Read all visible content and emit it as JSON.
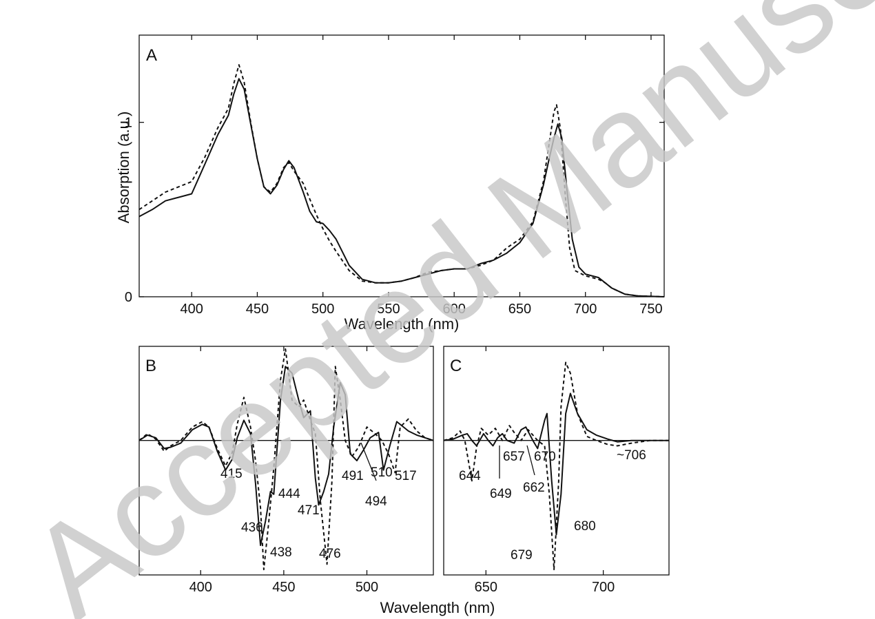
{
  "watermark": "Accepted Manuscript",
  "chart_data": [
    {
      "panel": "A",
      "type": "line",
      "xlabel": "Wavelength (nm)",
      "ylabel": "Absorption (a.u.)",
      "xlim": [
        360,
        760
      ],
      "ylim": [
        0,
        1.5
      ],
      "x_ticks": [
        "400",
        "450",
        "500",
        "550",
        "600",
        "650",
        "700",
        "750"
      ],
      "y_ticks": [
        "0",
        "1"
      ],
      "series": [
        {
          "style": "solid",
          "points": [
            [
              360,
              0.46
            ],
            [
              370,
              0.5
            ],
            [
              380,
              0.55
            ],
            [
              390,
              0.57
            ],
            [
              400,
              0.59
            ],
            [
              410,
              0.76
            ],
            [
              420,
              0.93
            ],
            [
              428,
              1.04
            ],
            [
              432,
              1.16
            ],
            [
              436,
              1.25
            ],
            [
              440,
              1.19
            ],
            [
              445,
              0.99
            ],
            [
              450,
              0.79
            ],
            [
              455,
              0.63
            ],
            [
              460,
              0.59
            ],
            [
              465,
              0.64
            ],
            [
              470,
              0.73
            ],
            [
              474,
              0.78
            ],
            [
              478,
              0.74
            ],
            [
              485,
              0.6
            ],
            [
              490,
              0.49
            ],
            [
              495,
              0.43
            ],
            [
              500,
              0.42
            ],
            [
              505,
              0.38
            ],
            [
              510,
              0.33
            ],
            [
              520,
              0.18
            ],
            [
              530,
              0.1
            ],
            [
              540,
              0.08
            ],
            [
              550,
              0.08
            ],
            [
              560,
              0.09
            ],
            [
              570,
              0.11
            ],
            [
              580,
              0.13
            ],
            [
              590,
              0.15
            ],
            [
              600,
              0.16
            ],
            [
              610,
              0.16
            ],
            [
              620,
              0.19
            ],
            [
              630,
              0.21
            ],
            [
              640,
              0.25
            ],
            [
              650,
              0.31
            ],
            [
              660,
              0.42
            ],
            [
              668,
              0.64
            ],
            [
              672,
              0.78
            ],
            [
              676,
              0.91
            ],
            [
              679,
              0.99
            ],
            [
              682,
              0.91
            ],
            [
              686,
              0.61
            ],
            [
              690,
              0.33
            ],
            [
              695,
              0.17
            ],
            [
              700,
              0.13
            ],
            [
              705,
              0.12
            ],
            [
              710,
              0.11
            ],
            [
              715,
              0.08
            ],
            [
              720,
              0.05
            ],
            [
              730,
              0.015
            ],
            [
              740,
              0.005
            ],
            [
              760,
              0.0
            ]
          ]
        },
        {
          "style": "dashed",
          "points": [
            [
              360,
              0.5
            ],
            [
              370,
              0.55
            ],
            [
              380,
              0.6
            ],
            [
              390,
              0.63
            ],
            [
              400,
              0.66
            ],
            [
              410,
              0.8
            ],
            [
              420,
              0.97
            ],
            [
              428,
              1.08
            ],
            [
              432,
              1.22
            ],
            [
              436,
              1.33
            ],
            [
              440,
              1.23
            ],
            [
              445,
              1.0
            ],
            [
              450,
              0.79
            ],
            [
              455,
              0.63
            ],
            [
              460,
              0.6
            ],
            [
              465,
              0.65
            ],
            [
              470,
              0.74
            ],
            [
              474,
              0.77
            ],
            [
              478,
              0.72
            ],
            [
              485,
              0.65
            ],
            [
              490,
              0.56
            ],
            [
              495,
              0.47
            ],
            [
              500,
              0.39
            ],
            [
              505,
              0.32
            ],
            [
              510,
              0.26
            ],
            [
              520,
              0.15
            ],
            [
              530,
              0.09
            ],
            [
              540,
              0.08
            ],
            [
              550,
              0.08
            ],
            [
              560,
              0.09
            ],
            [
              570,
              0.11
            ],
            [
              580,
              0.14
            ],
            [
              590,
              0.15
            ],
            [
              600,
              0.16
            ],
            [
              610,
              0.16
            ],
            [
              620,
              0.18
            ],
            [
              630,
              0.21
            ],
            [
              640,
              0.28
            ],
            [
              650,
              0.33
            ],
            [
              660,
              0.43
            ],
            [
              668,
              0.66
            ],
            [
              672,
              0.86
            ],
            [
              676,
              1.06
            ],
            [
              678,
              1.1
            ],
            [
              681,
              0.96
            ],
            [
              685,
              0.55
            ],
            [
              688,
              0.28
            ],
            [
              692,
              0.15
            ],
            [
              700,
              0.12
            ],
            [
              705,
              0.11
            ],
            [
              710,
              0.1
            ],
            [
              715,
              0.08
            ],
            [
              720,
              0.05
            ],
            [
              730,
              0.015
            ],
            [
              740,
              0.005
            ],
            [
              760,
              0.0
            ]
          ]
        }
      ]
    },
    {
      "panel": "B",
      "type": "line",
      "xlabel": "Wavelength (nm)",
      "xlim": [
        363,
        540
      ],
      "ylim": [
        -1.0,
        0.7
      ],
      "x_ticks": [
        "400",
        "450",
        "500"
      ],
      "zero_line": true,
      "annotations": [
        "415",
        "436",
        "438",
        "444",
        "471",
        "476",
        "491",
        "494",
        "510",
        "517"
      ],
      "series": [
        {
          "style": "solid",
          "points": [
            [
              363,
              0.0
            ],
            [
              368,
              0.04
            ],
            [
              373,
              0.02
            ],
            [
              378,
              -0.06
            ],
            [
              382,
              -0.05
            ],
            [
              388,
              -0.02
            ],
            [
              395,
              0.08
            ],
            [
              401,
              0.12
            ],
            [
              405,
              0.1
            ],
            [
              410,
              -0.08
            ],
            [
              415,
              -0.22
            ],
            [
              419,
              -0.14
            ],
            [
              422,
              0.02
            ],
            [
              426,
              0.15
            ],
            [
              430,
              0.05
            ],
            [
              433,
              -0.32
            ],
            [
              436,
              -0.78
            ],
            [
              439,
              -0.6
            ],
            [
              442,
              -0.38
            ],
            [
              444,
              -0.4
            ],
            [
              448,
              0.3
            ],
            [
              451,
              0.55
            ],
            [
              455,
              0.5
            ],
            [
              459,
              0.3
            ],
            [
              462,
              0.17
            ],
            [
              466,
              0.22
            ],
            [
              469,
              -0.28
            ],
            [
              471,
              -0.48
            ],
            [
              474,
              -0.38
            ],
            [
              477,
              -0.25
            ],
            [
              480,
              0.1
            ],
            [
              484,
              0.43
            ],
            [
              487,
              0.34
            ],
            [
              490,
              -0.1
            ],
            [
              494,
              -0.15
            ],
            [
              498,
              -0.07
            ],
            [
              502,
              0.02
            ],
            [
              507,
              0.06
            ],
            [
              510,
              -0.22
            ],
            [
              514,
              -0.03
            ],
            [
              518,
              0.14
            ],
            [
              525,
              0.07
            ],
            [
              530,
              0.04
            ],
            [
              535,
              0.02
            ],
            [
              540,
              0.0
            ]
          ]
        },
        {
          "style": "dashed",
          "points": [
            [
              363,
              0.0
            ],
            [
              368,
              0.05
            ],
            [
              373,
              0.01
            ],
            [
              378,
              -0.08
            ],
            [
              382,
              -0.04
            ],
            [
              388,
              0.0
            ],
            [
              395,
              0.1
            ],
            [
              401,
              0.14
            ],
            [
              405,
              0.1
            ],
            [
              410,
              -0.06
            ],
            [
              415,
              -0.19
            ],
            [
              419,
              -0.09
            ],
            [
              422,
              0.12
            ],
            [
              426,
              0.32
            ],
            [
              430,
              0.1
            ],
            [
              433,
              -0.15
            ],
            [
              436,
              -0.5
            ],
            [
              438,
              -0.96
            ],
            [
              441,
              -0.6
            ],
            [
              444,
              -0.2
            ],
            [
              448,
              0.45
            ],
            [
              451,
              0.68
            ],
            [
              455,
              0.3
            ],
            [
              459,
              0.25
            ],
            [
              462,
              0.3
            ],
            [
              466,
              0.15
            ],
            [
              469,
              0.05
            ],
            [
              472,
              -0.45
            ],
            [
              476,
              -0.92
            ],
            [
              479,
              -0.3
            ],
            [
              481,
              0.55
            ],
            [
              484,
              0.3
            ],
            [
              487,
              0.0
            ],
            [
              491,
              -0.12
            ],
            [
              495,
              -0.05
            ],
            [
              500,
              0.1
            ],
            [
              505,
              0.05
            ],
            [
              509,
              0.0
            ],
            [
              513,
              -0.1
            ],
            [
              517,
              -0.24
            ],
            [
              520,
              0.1
            ],
            [
              525,
              0.16
            ],
            [
              530,
              0.07
            ],
            [
              535,
              0.02
            ],
            [
              540,
              0.0
            ]
          ]
        }
      ]
    },
    {
      "panel": "C",
      "type": "line",
      "xlim": [
        632,
        728
      ],
      "ylim": [
        -1.0,
        0.7
      ],
      "x_ticks": [
        "650",
        "700"
      ],
      "zero_line": true,
      "annotations": [
        "644",
        "649",
        "657",
        "662",
        "670",
        "679",
        "680",
        "~706"
      ],
      "series": [
        {
          "style": "solid",
          "points": [
            [
              632,
              0.0
            ],
            [
              636,
              0.01
            ],
            [
              640,
              0.04
            ],
            [
              642,
              0.05
            ],
            [
              644,
              0.0
            ],
            [
              646,
              -0.04
            ],
            [
              648,
              0.02
            ],
            [
              649,
              0.05
            ],
            [
              651,
              0.0
            ],
            [
              653,
              -0.04
            ],
            [
              655,
              0.02
            ],
            [
              657,
              0.05
            ],
            [
              659,
              0.0
            ],
            [
              662,
              -0.02
            ],
            [
              665,
              0.08
            ],
            [
              667,
              0.1
            ],
            [
              670,
              0.0
            ],
            [
              672,
              -0.06
            ],
            [
              675,
              0.15
            ],
            [
              676,
              0.2
            ],
            [
              678,
              -0.3
            ],
            [
              680,
              -0.7
            ],
            [
              682,
              -0.4
            ],
            [
              684,
              0.2
            ],
            [
              686,
              0.35
            ],
            [
              689,
              0.2
            ],
            [
              693,
              0.08
            ],
            [
              697,
              0.04
            ],
            [
              702,
              0.01
            ],
            [
              706,
              -0.01
            ],
            [
              712,
              0.0
            ],
            [
              728,
              0.0
            ]
          ]
        },
        {
          "style": "dashed",
          "points": [
            [
              632,
              0.0
            ],
            [
              636,
              0.02
            ],
            [
              639,
              0.07
            ],
            [
              641,
              0.0
            ],
            [
              644,
              -0.3
            ],
            [
              646,
              -0.05
            ],
            [
              648,
              0.09
            ],
            [
              651,
              0.04
            ],
            [
              654,
              0.09
            ],
            [
              657,
              0.0
            ],
            [
              660,
              0.11
            ],
            [
              662,
              0.06
            ],
            [
              665,
              0.0
            ],
            [
              668,
              0.08
            ],
            [
              670,
              0.04
            ],
            [
              672,
              0.0
            ],
            [
              675,
              -0.04
            ],
            [
              677,
              -0.4
            ],
            [
              679,
              -0.96
            ],
            [
              681,
              -0.3
            ],
            [
              682,
              0.25
            ],
            [
              684,
              0.58
            ],
            [
              686,
              0.5
            ],
            [
              689,
              0.2
            ],
            [
              693,
              0.03
            ],
            [
              697,
              0.0
            ],
            [
              702,
              -0.03
            ],
            [
              706,
              -0.04
            ],
            [
              712,
              -0.02
            ],
            [
              720,
              0.0
            ],
            [
              728,
              0.0
            ]
          ]
        }
      ]
    }
  ]
}
